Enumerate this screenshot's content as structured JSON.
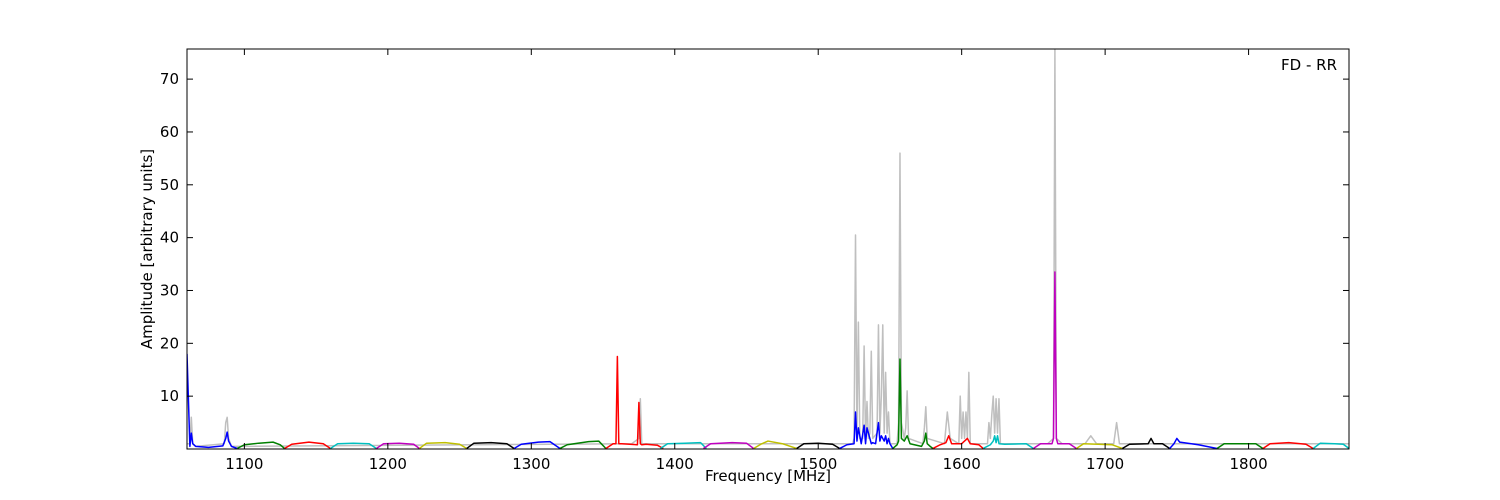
{
  "chart_data": {
    "type": "line",
    "xlabel": "Frequency [MHz]",
    "ylabel": "Amplitude [arbitrary units]",
    "annotation": "FD - RR",
    "xlim": [
      1060,
      1870
    ],
    "ylim": [
      0,
      75.7
    ],
    "xticks": [
      1100,
      1200,
      1300,
      1400,
      1500,
      1600,
      1700,
      1800
    ],
    "yticks": [
      10,
      20,
      30,
      40,
      50,
      60,
      70
    ],
    "series": [
      {
        "color": "#bfbfbf",
        "x": [
          1060,
          1062,
          1063,
          1064,
          1066,
          1086,
          1087,
          1088,
          1089,
          1091,
          1370,
          1375,
          1376,
          1377,
          1380,
          1524,
          1525,
          1526,
          1527,
          1528,
          1529,
          1531,
          1532,
          1533,
          1534,
          1535,
          1536,
          1537,
          1538,
          1541,
          1542,
          1543,
          1544,
          1545,
          1546,
          1547,
          1548,
          1549,
          1550,
          1555,
          1556,
          1557,
          1558,
          1560,
          1561,
          1562,
          1563,
          1573,
          1574,
          1575,
          1576,
          1588,
          1590,
          1592,
          1598,
          1599,
          1600,
          1601,
          1602,
          1603,
          1604,
          1605,
          1606,
          1618,
          1619,
          1620,
          1621,
          1622,
          1623,
          1624,
          1625,
          1626,
          1627,
          1660,
          1664,
          1665,
          1666,
          1670,
          1686,
          1690,
          1694,
          1706,
          1708,
          1710,
          1870
        ],
        "values": [
          1,
          1,
          6,
          1,
          0.5,
          1,
          5,
          6,
          2,
          0.5,
          1,
          2,
          9.5,
          1,
          1,
          1,
          2,
          40.5,
          3,
          24,
          2,
          2,
          19.5,
          2,
          9,
          2,
          3,
          18.5,
          2,
          3,
          23.5,
          3,
          10,
          23.5,
          3,
          14.5,
          3,
          7,
          1,
          1,
          5,
          56,
          5,
          2,
          4,
          11,
          2,
          1,
          4,
          8,
          2,
          1,
          7,
          2,
          1,
          10,
          2,
          7,
          2,
          7,
          2,
          14.5,
          1,
          1,
          5,
          2,
          6.5,
          10,
          3,
          9.5,
          3,
          9.5,
          1,
          1,
          2,
          75.7,
          2,
          1,
          1,
          2.5,
          1,
          1,
          5,
          1,
          1
        ]
      },
      {
        "color": "#0000ff",
        "x": [
          1060,
          1062,
          1063,
          1064,
          1066,
          1075,
          1085,
          1087,
          1088,
          1089,
          1091,
          1095
        ],
        "values": [
          18,
          0.5,
          3,
          1,
          0.5,
          0.3,
          0.6,
          2,
          3.2,
          1.5,
          0.5,
          0.1
        ]
      },
      {
        "color": "#008000",
        "x": [
          1095,
          1100,
          1110,
          1120,
          1125,
          1128
        ],
        "values": [
          0.1,
          0.8,
          1.1,
          1.3,
          0.8,
          0.1
        ]
      },
      {
        "color": "#ff0000",
        "x": [
          1128,
          1133,
          1145,
          1155,
          1160
        ],
        "values": [
          0.1,
          0.9,
          1.3,
          1,
          0.1
        ]
      },
      {
        "color": "#00bfbf",
        "x": [
          1160,
          1165,
          1176,
          1187,
          1192
        ],
        "values": [
          0.1,
          1,
          1.1,
          1,
          0.1
        ]
      },
      {
        "color": "#bf00bf",
        "x": [
          1192,
          1197,
          1208,
          1218,
          1222
        ],
        "values": [
          0.1,
          1,
          1.1,
          0.9,
          0.1
        ]
      },
      {
        "color": "#bfbf00",
        "x": [
          1222,
          1227,
          1240,
          1250,
          1255
        ],
        "values": [
          0.1,
          1.1,
          1.2,
          0.9,
          0.1
        ]
      },
      {
        "color": "#000000",
        "x": [
          1255,
          1260,
          1272,
          1283,
          1288
        ],
        "values": [
          0.1,
          1.1,
          1.2,
          1,
          0.1
        ]
      },
      {
        "color": "#0000ff",
        "x": [
          1288,
          1293,
          1305,
          1313,
          1320
        ],
        "values": [
          0.1,
          0.9,
          1.3,
          1.4,
          0.1
        ]
      },
      {
        "color": "#008000",
        "x": [
          1320,
          1325,
          1340,
          1347,
          1352
        ],
        "values": [
          0.1,
          0.8,
          1.4,
          1.5,
          0.1
        ]
      },
      {
        "color": "#ff0000",
        "x": [
          1352,
          1357,
          1359,
          1360,
          1361,
          1363,
          1374,
          1375,
          1376,
          1377,
          1380,
          1388,
          1392
        ],
        "values": [
          0.1,
          1,
          1,
          17.5,
          1,
          1,
          0.8,
          8.8,
          1,
          0.8,
          0.9,
          0.7,
          0.1
        ]
      },
      {
        "color": "#00bfbf",
        "x": [
          1390,
          1395,
          1407,
          1418,
          1422
        ],
        "values": [
          0.1,
          1,
          1.1,
          1.2,
          0.1
        ]
      },
      {
        "color": "#bf00bf",
        "x": [
          1420,
          1425,
          1440,
          1450,
          1455
        ],
        "values": [
          0.1,
          1,
          1.2,
          1.1,
          0.1
        ]
      },
      {
        "color": "#bfbf00",
        "x": [
          1455,
          1460,
          1465,
          1475,
          1485
        ],
        "values": [
          0.1,
          0.9,
          1.5,
          1,
          0.1
        ]
      },
      {
        "color": "#000000",
        "x": [
          1485,
          1490,
          1500,
          1510,
          1515
        ],
        "values": [
          0.1,
          1,
          1.1,
          0.9,
          0.1
        ]
      },
      {
        "color": "#0000ff",
        "x": [
          1515,
          1520,
          1525,
          1526,
          1527,
          1528,
          1530,
          1532,
          1533,
          1534,
          1537,
          1538,
          1540,
          1542,
          1543,
          1544,
          1546,
          1547,
          1548,
          1549,
          1550,
          1552
        ],
        "values": [
          0.1,
          0.8,
          1,
          7,
          1.5,
          4,
          1,
          4.5,
          1,
          4,
          1,
          1.2,
          1,
          5,
          1.5,
          2.5,
          1.5,
          2.5,
          1,
          2,
          1,
          0.1
        ]
      },
      {
        "color": "#008000",
        "x": [
          1552,
          1555,
          1556,
          1557,
          1558,
          1560,
          1562,
          1564,
          1572,
          1574,
          1575,
          1576,
          1578,
          1580
        ],
        "values": [
          0.1,
          0.8,
          1.5,
          17,
          2,
          1.5,
          2.5,
          1,
          0.5,
          1.5,
          3,
          1,
          0.5,
          0.1
        ]
      },
      {
        "color": "#ff0000",
        "x": [
          1580,
          1585,
          1589,
          1591,
          1593,
          1600,
          1604,
          1606,
          1612,
          1615
        ],
        "values": [
          0.1,
          0.8,
          1.2,
          2.5,
          1,
          1,
          2,
          1,
          0.8,
          0.1
        ]
      },
      {
        "color": "#00bfbf",
        "x": [
          1615,
          1620,
          1622,
          1623,
          1624,
          1625,
          1626,
          1630,
          1645,
          1650
        ],
        "values": [
          0.1,
          0.8,
          1.5,
          2.5,
          1.2,
          2.5,
          1,
          0.9,
          1,
          0.1
        ]
      },
      {
        "color": "#bf00bf",
        "x": [
          1650,
          1655,
          1663,
          1664,
          1665,
          1666,
          1667,
          1675,
          1680
        ],
        "values": [
          0.1,
          1,
          1,
          2,
          33.5,
          2,
          1,
          1,
          0.1
        ]
      },
      {
        "color": "#bfbf00",
        "x": [
          1680,
          1685,
          1695,
          1705,
          1712
        ],
        "values": [
          0.1,
          1,
          0.9,
          0.8,
          0.1
        ]
      },
      {
        "color": "#000000",
        "x": [
          1712,
          1717,
          1730,
          1732,
          1734,
          1740,
          1745
        ],
        "values": [
          0.1,
          0.9,
          1,
          2,
          1,
          1,
          0.1
        ]
      },
      {
        "color": "#0000ff",
        "x": [
          1745,
          1748,
          1750,
          1752,
          1765,
          1778
        ],
        "values": [
          0.1,
          1,
          2,
          1.3,
          0.8,
          0.1
        ]
      },
      {
        "color": "#008000",
        "x": [
          1778,
          1783,
          1795,
          1805,
          1810
        ],
        "values": [
          0.1,
          1,
          1,
          1,
          0.1
        ]
      },
      {
        "color": "#ff0000",
        "x": [
          1810,
          1815,
          1828,
          1840,
          1845
        ],
        "values": [
          0.1,
          1,
          1.2,
          0.9,
          0.1
        ]
      },
      {
        "color": "#00bfbf",
        "x": [
          1845,
          1850,
          1860,
          1866,
          1870
        ],
        "values": [
          0.1,
          1.1,
          1,
          0.9,
          0.1
        ]
      }
    ]
  }
}
